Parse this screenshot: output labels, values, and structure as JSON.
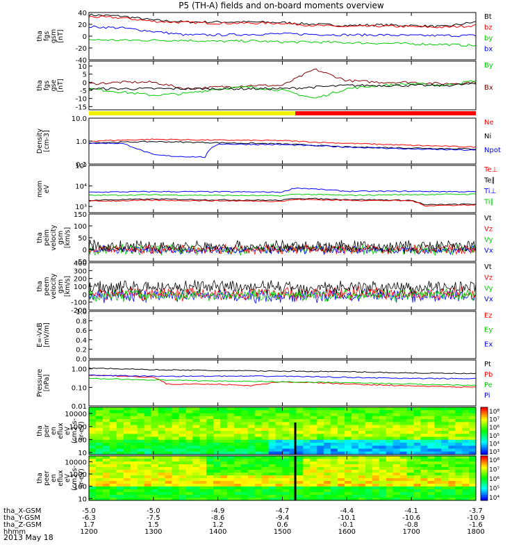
{
  "title": "P5 (TH-A) fields and on-board moments overview",
  "date_label": "2013 May 18",
  "chart_data": {
    "type": "line",
    "title": "P5 (TH-A) fields and on-board moments overview",
    "x_ticks": [
      "1200",
      "1300",
      "1400",
      "1500",
      "1600",
      "1700",
      "1800"
    ],
    "x_range": [
      1200,
      1800
    ],
    "ephemeris": [
      {
        "label": "tha_X-GSM",
        "values": [
          "-5.0",
          "-5.0",
          "-4.9",
          "-4.7",
          "-4.4",
          "-4.1",
          "-3.7"
        ]
      },
      {
        "label": "tha_Y-GSM",
        "values": [
          "-6.3",
          "-7.5",
          "-8.6",
          "-9.4",
          "-10.1",
          "-10.6",
          "-10.9"
        ]
      },
      {
        "label": "tha_Z-GSM",
        "values": [
          "1.7",
          "1.5",
          "1.2",
          "0.6",
          "-0.1",
          "-0.8",
          "-1.6"
        ]
      },
      {
        "label": "hhmm",
        "values": [
          "1200",
          "1300",
          "1400",
          "1500",
          "1600",
          "1700",
          "1800"
        ]
      }
    ],
    "status_bar": {
      "yellow_until": 1520,
      "colors": {
        "yellow": "#f0f000",
        "red": "#ff0000"
      }
    },
    "burst_marker_x": 1520,
    "panels": [
      {
        "id": "fgs-gsm",
        "ylabel": [
          "tha",
          "fgs",
          "gsm",
          "[nT]"
        ],
        "scale": "linear",
        "ylim": [
          -40,
          40
        ],
        "ticks": [
          "40",
          "20",
          "0",
          "-20",
          "-40"
        ],
        "tick_values": [
          40,
          20,
          0,
          -20,
          -40
        ],
        "legend": [
          {
            "label": "Bt",
            "color": "#000000"
          },
          {
            "label": "bz",
            "color": "#ff0000"
          },
          {
            "label": "by",
            "color": "#00cc00"
          },
          {
            "label": "bx",
            "color": "#0000ff"
          }
        ],
        "series": [
          {
            "color": "#000000",
            "x": [
              1200,
              1250,
              1300,
              1350,
              1400,
              1450,
              1500,
              1550,
              1600,
              1650,
              1700,
              1750,
              1800
            ],
            "y": [
              36,
              34,
              27,
              24,
              24,
              24,
              23,
              20,
              18,
              19,
              18,
              16,
              24
            ]
          },
          {
            "color": "#ff0000",
            "x": [
              1200,
              1250,
              1300,
              1350,
              1400,
              1450,
              1500,
              1550,
              1600,
              1650,
              1700,
              1750,
              1800
            ],
            "y": [
              33,
              31,
              25,
              23,
              22,
              22,
              22,
              18,
              16,
              17,
              16,
              15,
              18
            ]
          },
          {
            "color": "#0000ff",
            "x": [
              1200,
              1250,
              1300,
              1350,
              1400,
              1450,
              1500,
              1550,
              1600,
              1650,
              1700,
              1750,
              1800
            ],
            "y": [
              16,
              14,
              8,
              2,
              2,
              3,
              4,
              3,
              2,
              2,
              1,
              1,
              1
            ]
          },
          {
            "color": "#00cc00",
            "x": [
              1200,
              1250,
              1300,
              1350,
              1400,
              1450,
              1500,
              1550,
              1600,
              1650,
              1700,
              1750,
              1800
            ],
            "y": [
              -6,
              -7,
              -7,
              -7,
              -9,
              -8,
              -10,
              -10,
              -11,
              -12,
              -13,
              -14,
              -16
            ]
          }
        ]
      },
      {
        "id": "fgs-gse",
        "ylabel": [
          "tha",
          "fgs",
          "gse",
          "[nT]"
        ],
        "scale": "linear",
        "ylim": [
          -17,
          13
        ],
        "ticks": [
          "10",
          "5",
          "0",
          "-5",
          "-10",
          "-15"
        ],
        "tick_values": [
          10,
          5,
          0,
          -5,
          -10,
          -15
        ],
        "legend": [
          {
            "label": "By",
            "color": "#00cc00"
          },
          {
            "label": "Bx",
            "color": "#800000"
          }
        ],
        "series": [
          {
            "color": "#800000",
            "x": [
              1200,
              1250,
              1300,
              1350,
              1400,
              1450,
              1500,
              1550,
              1600,
              1650,
              1700,
              1750,
              1800
            ],
            "y": [
              -1,
              0,
              0,
              -4,
              -3,
              -2,
              -2,
              8,
              1,
              0,
              0,
              -1,
              0
            ]
          },
          {
            "color": "#00cc00",
            "x": [
              1200,
              1250,
              1300,
              1350,
              1400,
              1450,
              1500,
              1550,
              1600,
              1650,
              1700,
              1750,
              1800
            ],
            "y": [
              -4,
              -6,
              -8,
              -7,
              -4,
              -3,
              -5,
              -10,
              -4,
              -2,
              -1,
              -2,
              1
            ]
          },
          {
            "color": "#000000",
            "x": [
              1200,
              1250,
              1300,
              1350,
              1400,
              1450,
              1500,
              1550,
              1600,
              1650,
              1700,
              1750,
              1800
            ],
            "y": [
              -4,
              -4,
              -4,
              -4,
              -4,
              -4,
              -4,
              -3,
              -2,
              -2,
              -2,
              -2,
              -1
            ]
          }
        ]
      },
      {
        "id": "density",
        "ylabel": [
          "Density",
          "[cm-3]"
        ],
        "scale": "log",
        "ylim": [
          0.1,
          10
        ],
        "ticks": [
          "10.0",
          "1.0",
          "0.1"
        ],
        "tick_values": [
          10,
          1,
          0.1
        ],
        "legend": [
          {
            "label": "Ne",
            "color": "#ff0000"
          },
          {
            "label": "Ni",
            "color": "#000000"
          },
          {
            "label": "Npot",
            "color": "#0000ff"
          }
        ],
        "series": [
          {
            "color": "#ff0000",
            "x": [
              1200,
              1300,
              1400,
              1500,
              1550,
              1600,
              1700,
              1800
            ],
            "y": [
              1.0,
              1.2,
              1.1,
              1.05,
              0.9,
              0.8,
              0.65,
              0.55
            ]
          },
          {
            "color": "#000000",
            "x": [
              1200,
              1300,
              1400,
              1500,
              1550,
              1600,
              1700,
              1800
            ],
            "y": [
              0.85,
              0.95,
              0.85,
              0.75,
              0.65,
              0.55,
              0.5,
              0.45
            ]
          },
          {
            "color": "#0000ff",
            "x": [
              1200,
              1250,
              1280,
              1300,
              1330,
              1380,
              1400,
              1500,
              1600,
              1700,
              1800
            ],
            "y": [
              0.8,
              0.8,
              0.4,
              0.25,
              0.22,
              0.2,
              0.75,
              0.7,
              0.55,
              0.45,
              0.4
            ]
          }
        ]
      },
      {
        "id": "temperature",
        "ylabel": [
          "mom",
          "eV"
        ],
        "scale": "log",
        "ylim": [
          500,
          100000
        ],
        "ticks": [
          "10⁵",
          "10⁴",
          "10³"
        ],
        "tick_values": [
          100000,
          10000,
          1000
        ],
        "legend": [
          {
            "label": "Te⊥",
            "color": "#ff0000"
          },
          {
            "label": "Te∥",
            "color": "#000000"
          },
          {
            "label": "Ti⊥",
            "color": "#0000ff"
          },
          {
            "label": "Ti∥",
            "color": "#00cc00"
          }
        ],
        "series": [
          {
            "color": "#0000ff",
            "x": [
              1200,
              1300,
              1400,
              1500,
              1520,
              1600,
              1700,
              1800
            ],
            "y": [
              5000,
              5300,
              5200,
              5000,
              8000,
              5500,
              5500,
              5200
            ]
          },
          {
            "color": "#00cc00",
            "x": [
              1200,
              1300,
              1400,
              1500,
              1520,
              1600,
              1700,
              1800
            ],
            "y": [
              3500,
              3700,
              3500,
              3300,
              4000,
              3500,
              3800,
              4000
            ]
          },
          {
            "color": "#000000",
            "x": [
              1200,
              1300,
              1400,
              1500,
              1520,
              1600,
              1700,
              1720,
              1800
            ],
            "y": [
              2000,
              2300,
              2100,
              2000,
              2500,
              2200,
              2000,
              1200,
              1300
            ]
          },
          {
            "color": "#ff0000",
            "x": [
              1200,
              1300,
              1400,
              1500,
              1520,
              1600,
              1700,
              1720,
              1800
            ],
            "y": [
              1800,
              2000,
              1900,
              1800,
              2200,
              2000,
              1900,
              1100,
              1200
            ]
          }
        ]
      },
      {
        "id": "peim-velocity",
        "ylabel": [
          "tha",
          "peim",
          "velocity",
          "gsm",
          "[km/s]"
        ],
        "scale": "linear",
        "ylim": [
          -50,
          150
        ],
        "ticks": [
          "150",
          "100",
          "50",
          "0",
          "-50"
        ],
        "tick_values": [
          150,
          100,
          50,
          0,
          -50
        ],
        "legend": [
          {
            "label": "Vt",
            "color": "#000000"
          },
          {
            "label": "Vz",
            "color": "#ff0000"
          },
          {
            "label": "Vy",
            "color": "#00cc00"
          },
          {
            "label": "Vx",
            "color": "#0000ff"
          }
        ],
        "noise": [
          {
            "color": "#00cc00",
            "base": 0,
            "amp": 18
          },
          {
            "color": "#0000ff",
            "base": -2,
            "amp": 14
          },
          {
            "color": "#ff0000",
            "base": 2,
            "amp": 16
          },
          {
            "color": "#000000",
            "base": 12,
            "amp": 22
          }
        ]
      },
      {
        "id": "peem-velocity",
        "ylabel": [
          "tha",
          "peem",
          "velocity",
          "gsm",
          "[km/s]"
        ],
        "scale": "linear",
        "ylim": [
          -200,
          400
        ],
        "ticks": [
          "400",
          "300",
          "200",
          "100",
          "0",
          "-100",
          "-200"
        ],
        "tick_values": [
          400,
          300,
          200,
          100,
          0,
          -100,
          -200
        ],
        "legend": [
          {
            "label": "Vt",
            "color": "#000000"
          },
          {
            "label": "Vz",
            "color": "#ff0000"
          },
          {
            "label": "Vy",
            "color": "#00cc00"
          },
          {
            "label": "Vx",
            "color": "#0000ff"
          }
        ],
        "noise": [
          {
            "color": "#0000ff",
            "base": -20,
            "amp": 70
          },
          {
            "color": "#ff0000",
            "base": 10,
            "amp": 70
          },
          {
            "color": "#00cc00",
            "base": -10,
            "amp": 60
          },
          {
            "color": "#000000",
            "base": 90,
            "amp": 70
          }
        ]
      },
      {
        "id": "efield",
        "ylabel": [
          "E=-VxB",
          "[mV/m]"
        ],
        "scale": "linear",
        "ylim": [
          0,
          1
        ],
        "ticks": [
          "1.0",
          "0.8",
          "0.6",
          "0.4",
          "0.2",
          "0.0"
        ],
        "tick_values": [
          1,
          0.8,
          0.6,
          0.4,
          0.2,
          0
        ],
        "legend": [
          {
            "label": "Ez",
            "color": "#ff0000"
          },
          {
            "label": "Ey",
            "color": "#00cc00"
          },
          {
            "label": "Ex",
            "color": "#0000ff"
          }
        ],
        "series": []
      },
      {
        "id": "pressure",
        "ylabel": [
          "Pressure",
          "[nPa]"
        ],
        "scale": "log",
        "ylim": [
          0.01,
          3
        ],
        "ticks": [
          "1.00",
          "0.10",
          "0.01"
        ],
        "tick_values": [
          1,
          0.1,
          0.01
        ],
        "legend": [
          {
            "label": "Pt",
            "color": "#000000"
          },
          {
            "label": "Pb",
            "color": "#ff0000"
          },
          {
            "label": "Pe",
            "color": "#00cc00"
          },
          {
            "label": "Pi",
            "color": "#0000ff"
          }
        ],
        "series": [
          {
            "color": "#000000",
            "x": [
              1200,
              1300,
              1400,
              1500,
              1600,
              1700,
              1800
            ],
            "y": [
              1.1,
              0.9,
              0.8,
              0.75,
              0.7,
              0.6,
              0.55
            ]
          },
          {
            "color": "#ff0000",
            "x": [
              1200,
              1300,
              1320,
              1400,
              1450,
              1500,
              1550,
              1600,
              1700,
              1800
            ],
            "y": [
              0.45,
              0.35,
              0.15,
              0.15,
              0.12,
              0.2,
              0.18,
              0.15,
              0.12,
              0.1
            ]
          },
          {
            "color": "#0000ff",
            "x": [
              1200,
              1300,
              1400,
              1500,
              1600,
              1700,
              1800
            ],
            "y": [
              0.45,
              0.4,
              0.4,
              0.4,
              0.35,
              0.3,
              0.3
            ]
          },
          {
            "color": "#00cc00",
            "x": [
              1200,
              1300,
              1400,
              1500,
              1600,
              1700,
              1800
            ],
            "y": [
              0.3,
              0.25,
              0.22,
              0.2,
              0.18,
              0.15,
              0.13
            ]
          }
        ]
      },
      {
        "id": "peir-spec",
        "ylabel": [
          "tha",
          "peir",
          "en",
          "eflux",
          "eV",
          "(cm2-s-",
          "sr-eV)"
        ],
        "scale": "log",
        "ylim": [
          7,
          30000
        ],
        "ticks": [
          "10000",
          "1000",
          "100",
          "10"
        ],
        "tick_values": [
          10000,
          1000,
          100,
          10
        ],
        "spectrogram": "ion",
        "colorbar": {
          "ticks": [
            "10⁸",
            "10⁷",
            "10⁶",
            "10⁵",
            "10⁴",
            "10³"
          ]
        }
      },
      {
        "id": "peer-spec",
        "ylabel": [
          "tha",
          "peer",
          "en",
          "eflux",
          "eV",
          "(cm2-s-",
          "sr-eV)"
        ],
        "scale": "log",
        "ylim": [
          7,
          30000
        ],
        "ticks": [
          "10000",
          "1000",
          "100",
          "10"
        ],
        "tick_values": [
          10000,
          1000,
          100,
          10
        ],
        "spectrogram": "electron",
        "colorbar": {
          "ticks": [
            "10⁸",
            "10⁷",
            "10⁶",
            "10⁵",
            "10⁴"
          ]
        }
      }
    ]
  }
}
